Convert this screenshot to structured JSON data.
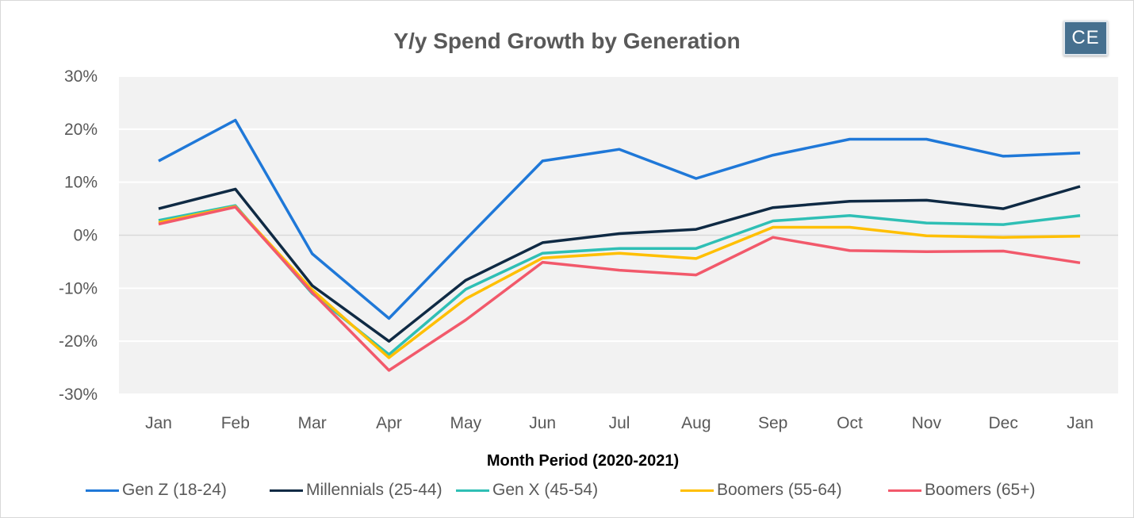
{
  "chart_data": {
    "type": "line",
    "title": "Y/y Spend Growth by Generation",
    "xlabel": "Month Period (2020-2021)",
    "ylabel": "",
    "categories": [
      "Jan",
      "Feb",
      "Mar",
      "Apr",
      "May",
      "Jun",
      "Jul",
      "Aug",
      "Sep",
      "Oct",
      "Nov",
      "Dec",
      "Jan"
    ],
    "y_ticks": [
      "30%",
      "20%",
      "10%",
      "0%",
      "-10%",
      "-20%",
      "-30%"
    ],
    "ylim": [
      -30,
      30
    ],
    "grid": true,
    "legend_position": "bottom",
    "series": [
      {
        "name": "Gen Z (18-24)",
        "color": "#1f78d8",
        "values": [
          14,
          21.7,
          -3.5,
          -15.7,
          -0.8,
          14,
          16.2,
          10.7,
          15.1,
          18.1,
          18.1,
          14.9,
          15.5
        ]
      },
      {
        "name": "Millennials (25-44)",
        "color": "#0f2a44",
        "values": [
          5,
          8.7,
          -9.5,
          -20,
          -8.5,
          -1.4,
          0.3,
          1.1,
          5.2,
          6.4,
          6.6,
          5,
          9.2
        ]
      },
      {
        "name": "Gen X (45-54)",
        "color": "#2fbfb5",
        "values": [
          2.8,
          5.6,
          -11,
          -22.5,
          -10.2,
          -3.4,
          -2.5,
          -2.5,
          2.7,
          3.7,
          2.3,
          2,
          3.7
        ]
      },
      {
        "name": "Boomers (55-64)",
        "color": "#ffbf00",
        "values": [
          2.4,
          5.4,
          -10.3,
          -23.1,
          -12,
          -4.3,
          -3.4,
          -4.4,
          1.5,
          1.5,
          -0.1,
          -0.4,
          -0.2
        ]
      },
      {
        "name": "Boomers (65+)",
        "color": "#f2596b",
        "values": [
          2.1,
          5.3,
          -10.8,
          -25.5,
          -16,
          -5.1,
          -6.6,
          -7.5,
          -0.4,
          -2.9,
          -3.1,
          -3,
          -5.2
        ]
      }
    ]
  },
  "logo": {
    "text": "CE"
  }
}
